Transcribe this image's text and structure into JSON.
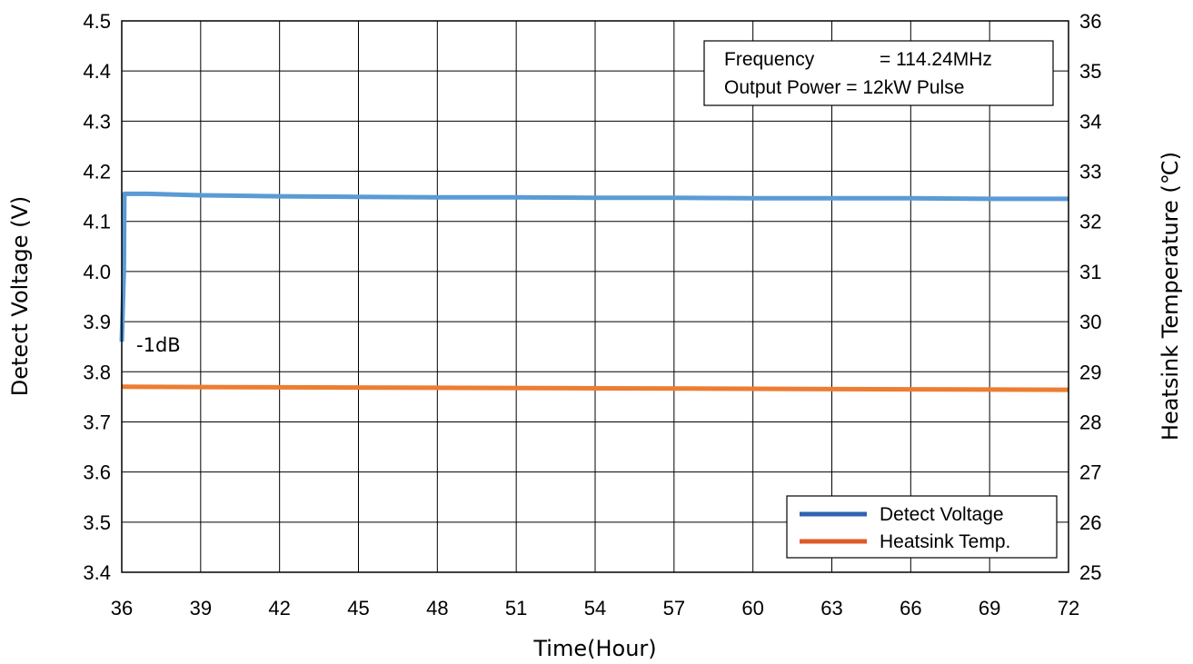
{
  "chart_data": {
    "type": "line",
    "xlabel": "Time(Hour)",
    "ylabel": "Detect Voltage (V)",
    "y2label": "Heatsink Temperature (℃)",
    "xlim": [
      36,
      72
    ],
    "ylim": [
      3.4,
      4.5
    ],
    "y2lim": [
      25,
      36
    ],
    "x_ticks": [
      "36",
      "39",
      "42",
      "45",
      "48",
      "51",
      "54",
      "57",
      "60",
      "63",
      "66",
      "69",
      "72"
    ],
    "y_ticks": [
      "3.4",
      "3.5",
      "3.6",
      "3.7",
      "3.8",
      "3.9",
      "4.0",
      "4.1",
      "4.2",
      "4.3",
      "4.4",
      "4.5"
    ],
    "y2_ticks": [
      "25",
      "26",
      "27",
      "28",
      "29",
      "30",
      "31",
      "32",
      "33",
      "34",
      "35",
      "36"
    ],
    "grid": true,
    "info_box": {
      "line1_label": "Frequency",
      "line1_value": "= 114.24MHz",
      "line2": "Output Power = 12kW Pulse"
    },
    "annotation": "-1dB",
    "legend_position": "bottom-right",
    "series": [
      {
        "name": "Detect Voltage",
        "axis": "left",
        "color": "#5b9bd5",
        "legend_color": "#2e64b4",
        "x": [
          36.0,
          36.08,
          36.1,
          37,
          39,
          42,
          45,
          48,
          51,
          54,
          57,
          60,
          63,
          66,
          69,
          72
        ],
        "y": [
          3.86,
          4.0,
          4.155,
          4.155,
          4.152,
          4.15,
          4.149,
          4.148,
          4.148,
          4.147,
          4.147,
          4.146,
          4.146,
          4.146,
          4.145,
          4.145
        ]
      },
      {
        "name": "Heatsink Temp.",
        "axis": "right",
        "color": "#ed7d31",
        "legend_color": "#de5b2a",
        "x": [
          36,
          42,
          48,
          54,
          60,
          66,
          72
        ],
        "y": [
          28.7,
          28.69,
          28.68,
          28.67,
          28.66,
          28.65,
          28.64
        ]
      }
    ]
  }
}
